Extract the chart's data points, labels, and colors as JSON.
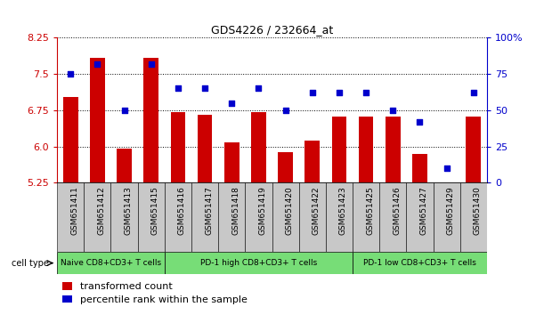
{
  "title": "GDS4226 / 232664_at",
  "categories": [
    "GSM651411",
    "GSM651412",
    "GSM651413",
    "GSM651415",
    "GSM651416",
    "GSM651417",
    "GSM651418",
    "GSM651419",
    "GSM651420",
    "GSM651422",
    "GSM651423",
    "GSM651425",
    "GSM651426",
    "GSM651427",
    "GSM651429",
    "GSM651430"
  ],
  "bar_values": [
    7.02,
    7.83,
    5.95,
    7.83,
    6.72,
    6.65,
    6.08,
    6.72,
    5.88,
    6.12,
    6.62,
    6.62,
    6.62,
    5.85,
    5.25,
    6.62
  ],
  "scatter_values": [
    75,
    82,
    50,
    82,
    65,
    65,
    55,
    65,
    50,
    62,
    62,
    62,
    50,
    42,
    10,
    62
  ],
  "bar_color": "#cc0000",
  "scatter_color": "#0000cc",
  "ylim_left": [
    5.25,
    8.25
  ],
  "ylim_right": [
    0,
    100
  ],
  "yticks_left": [
    5.25,
    6.0,
    6.75,
    7.5,
    8.25
  ],
  "yticks_right": [
    0,
    25,
    50,
    75,
    100
  ],
  "group_defs": [
    {
      "start": 0,
      "end": 3,
      "label": "Naive CD8+CD3+ T cells",
      "color": "#77dd77"
    },
    {
      "start": 4,
      "end": 10,
      "label": "PD-1 high CD8+CD3+ T cells",
      "color": "#77dd77"
    },
    {
      "start": 11,
      "end": 15,
      "label": "PD-1 low CD8+CD3+ T cells",
      "color": "#77dd77"
    }
  ],
  "cell_type_label": "cell type",
  "legend_bar_label": "transformed count",
  "legend_scatter_label": "percentile rank within the sample",
  "background_color": "#ffffff",
  "xtick_bg_color": "#c8c8c8"
}
